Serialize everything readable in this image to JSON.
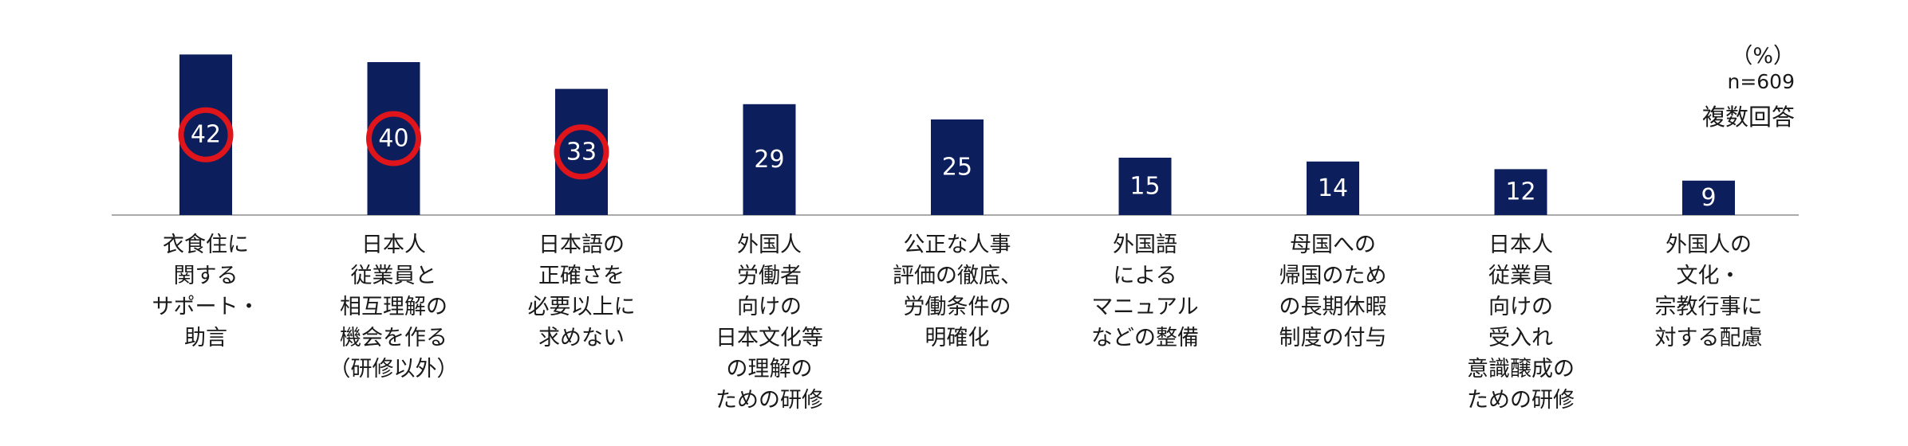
{
  "notes": {
    "unit": "（%）",
    "n": "n=609",
    "multi": "複数回答"
  },
  "colors": {
    "bar": "#0c1f5c",
    "highlight_ring": "#e0141b",
    "baseline": "#aaaaaa"
  },
  "chart_data": {
    "type": "bar",
    "categories": [
      "衣食住に\n関する\nサポート・\n助言",
      "日本人\n従業員と\n相互理解の\n機会を作る\n（研修以外）",
      "日本語の\n正確さを\n必要以上に\n求めない",
      "外国人\n労働者\n向けの\n日本文化等\nの理解の\nための研修",
      "公正な人事\n評価の徹底、\n労働条件の\n明確化",
      "外国語\nによる\nマニュアル\nなどの整備",
      "母国への\n帰国のため\nの長期休暇\n制度の付与",
      "日本人\n従業員\n向けの\n受入れ\n意識醸成の\nための研修",
      "外国人の\n文化・\n宗教行事に\n対する配慮"
    ],
    "values": [
      42,
      40,
      33,
      29,
      25,
      15,
      14,
      12,
      9
    ],
    "highlighted": [
      0,
      1,
      2
    ],
    "unit": "%",
    "ylim": [
      0,
      45
    ],
    "grid": false
  }
}
